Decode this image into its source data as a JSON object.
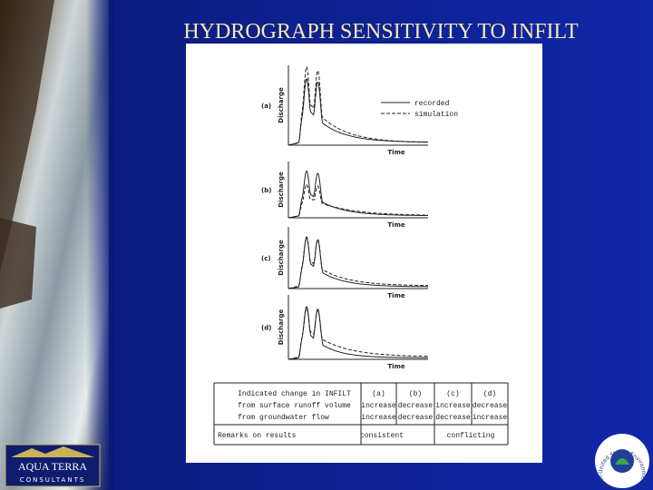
{
  "title": "HYDROGRAPH SENSITIVITY TO INFILT",
  "figure": {
    "legend": [
      "recorded",
      "simulation"
    ],
    "panels": [
      {
        "label": "(a)",
        "y_axis": "Discharge",
        "x_axis": "Time"
      },
      {
        "label": "(b)",
        "y_axis": "Discharge",
        "x_axis": "Time"
      },
      {
        "label": "(c)",
        "y_axis": "Discharge",
        "x_axis": "Time"
      },
      {
        "label": "(d)",
        "y_axis": "Discharge",
        "x_axis": "Time"
      }
    ],
    "table": {
      "rows": [
        [
          "Indicated change in INFILT",
          "(a)",
          "(b)",
          "(c)",
          "(d)"
        ],
        [
          "from surface runoff volume",
          "increase",
          "decrease",
          "increase",
          "decrease"
        ],
        [
          "from groundwater flow",
          "increase",
          "decrease",
          "decrease",
          "increase"
        ]
      ],
      "remarks": [
        "Remarks on results",
        "consistent",
        "conflicting"
      ]
    }
  },
  "logos": {
    "left": [
      "AQUA TERRA",
      "CONSULTANTS"
    ],
    "right": "United States Environmental Protection Agency"
  }
}
